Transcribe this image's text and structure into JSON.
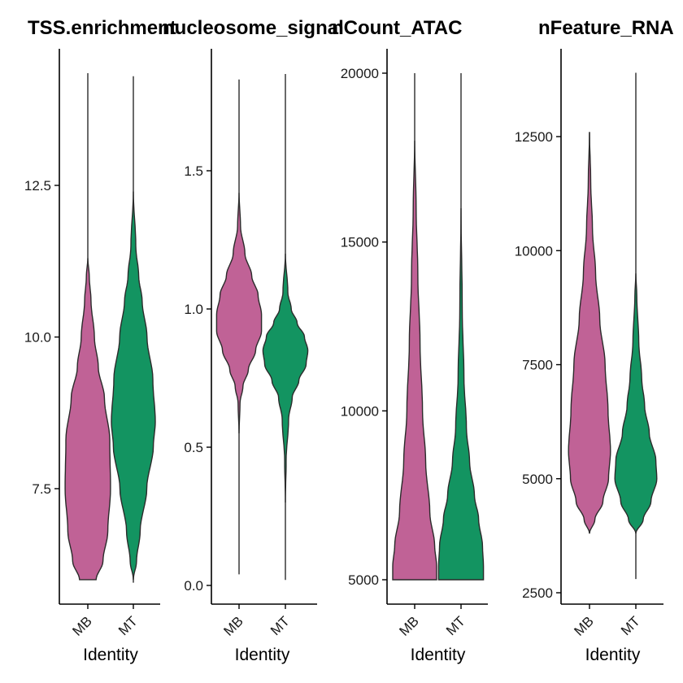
{
  "chart_data": [
    {
      "type": "violin",
      "title": "TSS.enrichment",
      "xlabel": "Identity",
      "categories": [
        "MB",
        "MT"
      ],
      "yticks": [
        7.5,
        10.0,
        12.5
      ],
      "ytick_labels": [
        "7.5",
        "10.0",
        "12.5"
      ],
      "ylim": [
        5.5,
        14.7
      ],
      "series": [
        {
          "category": "MB",
          "color": "#C06296",
          "min": 6.0,
          "max": 14.35,
          "body_max": 11.3,
          "profile": [
            [
              6.0,
              0.34
            ],
            [
              6.3,
              0.62
            ],
            [
              6.8,
              0.82
            ],
            [
              7.5,
              0.93
            ],
            [
              8.3,
              0.9
            ],
            [
              9.0,
              0.68
            ],
            [
              9.5,
              0.43
            ],
            [
              10.0,
              0.27
            ],
            [
              10.6,
              0.13
            ],
            [
              11.0,
              0.06
            ],
            [
              11.3,
              0.0
            ]
          ]
        },
        {
          "category": "MT",
          "color": "#139461",
          "min": 5.95,
          "max": 14.3,
          "body_max": 12.4,
          "profile": [
            [
              6.0,
              0.0
            ],
            [
              6.3,
              0.13
            ],
            [
              6.8,
              0.28
            ],
            [
              7.5,
              0.55
            ],
            [
              8.2,
              0.82
            ],
            [
              8.6,
              0.9
            ],
            [
              9.3,
              0.8
            ],
            [
              10.0,
              0.56
            ],
            [
              10.6,
              0.36
            ],
            [
              11.0,
              0.22
            ],
            [
              11.5,
              0.1
            ],
            [
              12.4,
              0.0
            ]
          ]
        }
      ]
    },
    {
      "type": "violin",
      "title": "nucleosome_signal",
      "xlabel": "Identity",
      "categories": [
        "MB",
        "MT"
      ],
      "yticks": [
        0.0,
        0.5,
        1.0,
        1.5
      ],
      "ytick_labels": [
        "0.0",
        "0.5",
        "1.0",
        "1.5"
      ],
      "ylim": [
        -0.07,
        1.92
      ],
      "series": [
        {
          "category": "MB",
          "color": "#C06296",
          "min": 0.04,
          "max": 1.83,
          "body_min": 0.55,
          "body_max": 1.42,
          "profile": [
            [
              0.55,
              0.0
            ],
            [
              0.66,
              0.04
            ],
            [
              0.72,
              0.16
            ],
            [
              0.78,
              0.38
            ],
            [
              0.85,
              0.68
            ],
            [
              0.92,
              0.92
            ],
            [
              0.98,
              0.92
            ],
            [
              1.05,
              0.78
            ],
            [
              1.12,
              0.52
            ],
            [
              1.2,
              0.24
            ],
            [
              1.3,
              0.06
            ],
            [
              1.42,
              0.0
            ]
          ]
        },
        {
          "category": "MT",
          "color": "#139461",
          "min": 0.02,
          "max": 1.85,
          "body_min": 0.3,
          "body_max": 1.2,
          "profile": [
            [
              0.3,
              0.0
            ],
            [
              0.45,
              0.03
            ],
            [
              0.6,
              0.13
            ],
            [
              0.68,
              0.28
            ],
            [
              0.74,
              0.55
            ],
            [
              0.8,
              0.85
            ],
            [
              0.85,
              0.92
            ],
            [
              0.9,
              0.78
            ],
            [
              0.95,
              0.48
            ],
            [
              1.0,
              0.24
            ],
            [
              1.06,
              0.1
            ],
            [
              1.2,
              0.0
            ]
          ]
        }
      ]
    },
    {
      "type": "violin",
      "title": "nCount_ATAC",
      "xlabel": "Identity",
      "categories": [
        "MB",
        "MT"
      ],
      "yticks": [
        5000,
        10000,
        15000,
        20000
      ],
      "ytick_labels": [
        "5000",
        "10000",
        "15000",
        "20000"
      ],
      "ylim": [
        4300,
        20800
      ],
      "series": [
        {
          "category": "MB",
          "color": "#C06296",
          "min": 5000,
          "max": 20000,
          "body_max": 18000,
          "profile": [
            [
              5000,
              0.9
            ],
            [
              5400,
              0.9
            ],
            [
              6000,
              0.82
            ],
            [
              7000,
              0.62
            ],
            [
              8500,
              0.45
            ],
            [
              10000,
              0.32
            ],
            [
              12000,
              0.22
            ],
            [
              14000,
              0.13
            ],
            [
              16000,
              0.06
            ],
            [
              18000,
              0.0
            ]
          ]
        },
        {
          "category": "MT",
          "color": "#139461",
          "min": 5000,
          "max": 20000,
          "body_max": 16000,
          "profile": [
            [
              5000,
              0.92
            ],
            [
              5400,
              0.92
            ],
            [
              6000,
              0.88
            ],
            [
              6800,
              0.72
            ],
            [
              7500,
              0.55
            ],
            [
              8500,
              0.35
            ],
            [
              9500,
              0.22
            ],
            [
              11000,
              0.12
            ],
            [
              13000,
              0.05
            ],
            [
              16000,
              0.0
            ]
          ]
        }
      ]
    },
    {
      "type": "violin",
      "title": "nFeature_RNA",
      "xlabel": "Identity",
      "categories": [
        "MB",
        "MT"
      ],
      "yticks": [
        2500,
        5000,
        7500,
        10000,
        12500
      ],
      "ytick_labels": [
        "2500",
        "5000",
        "7500",
        "10000",
        "12500"
      ],
      "ylim": [
        2200,
        14200
      ],
      "series": [
        {
          "category": "MB",
          "color": "#C06296",
          "min": 3800,
          "max": 12600,
          "body_min": 3800,
          "body_max": 12600,
          "profile": [
            [
              3800,
              0.0
            ],
            [
              4100,
              0.22
            ],
            [
              4500,
              0.55
            ],
            [
              5000,
              0.78
            ],
            [
              5600,
              0.86
            ],
            [
              6500,
              0.76
            ],
            [
              7500,
              0.64
            ],
            [
              8500,
              0.42
            ],
            [
              9500,
              0.25
            ],
            [
              10500,
              0.12
            ],
            [
              11500,
              0.05
            ],
            [
              12600,
              0.0
            ]
          ]
        },
        {
          "category": "MT",
          "color": "#139461",
          "min": 2800,
          "max": 13900,
          "body_min": 3800,
          "body_max": 9500,
          "profile": [
            [
              3800,
              0.0
            ],
            [
              4100,
              0.3
            ],
            [
              4500,
              0.62
            ],
            [
              5000,
              0.86
            ],
            [
              5400,
              0.82
            ],
            [
              6000,
              0.55
            ],
            [
              6600,
              0.36
            ],
            [
              7200,
              0.24
            ],
            [
              8000,
              0.12
            ],
            [
              9000,
              0.04
            ],
            [
              9500,
              0.0
            ]
          ]
        }
      ]
    }
  ]
}
